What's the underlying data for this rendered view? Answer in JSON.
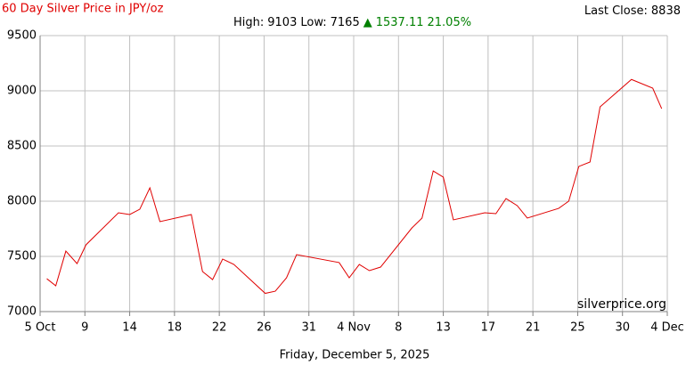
{
  "chart_data": {
    "type": "line",
    "title": "60 Day Silver Price in JPY/oz",
    "last_close_label": "Last Close:",
    "last_close": 8838,
    "high_label": "High:",
    "high": 9103,
    "low_label": "Low:",
    "low": 7165,
    "change_arrow": "▲",
    "change": 1537.11,
    "change_percent": "21.05%",
    "watermark": "silverprice.org",
    "date_caption": "Friday, December 5, 2025",
    "color": "#e00000",
    "grid": true,
    "x": [
      0.6,
      1.4,
      2.3,
      3.3,
      4.1,
      7.0,
      8.0,
      8.9,
      9.8,
      10.7,
      13.5,
      14.5,
      15.4,
      16.3,
      17.3,
      20.1,
      21.0,
      22.0,
      22.9,
      26.7,
      27.6,
      28.5,
      29.4,
      30.4,
      33.2,
      34.1,
      35.1,
      36.0,
      36.9,
      39.7,
      40.7,
      41.6,
      42.6,
      43.5,
      46.3,
      47.2,
      48.1,
      49.1,
      50.0,
      52.8,
      54.7,
      55.5
    ],
    "values": [
      7298,
      7234,
      7548,
      7435,
      7605,
      7895,
      7879,
      7927,
      8121,
      7815,
      7879,
      7363,
      7290,
      7476,
      7427,
      7165,
      7185,
      7306,
      7516,
      7444,
      7306,
      7427,
      7371,
      7403,
      7758,
      7847,
      8274,
      8218,
      7831,
      7895,
      7887,
      8024,
      7960,
      7847,
      7935,
      8000,
      8315,
      8355,
      8855,
      9103,
      9024,
      8838
    ],
    "xlim": [
      0,
      56
    ],
    "xticks": [
      {
        "value": 0,
        "label": "5 Oct"
      },
      {
        "value": 4,
        "label": "9"
      },
      {
        "value": 8,
        "label": "14"
      },
      {
        "value": 12,
        "label": "18"
      },
      {
        "value": 16,
        "label": "22"
      },
      {
        "value": 20,
        "label": "26"
      },
      {
        "value": 24,
        "label": "31"
      },
      {
        "value": 28,
        "label": "4 Nov"
      },
      {
        "value": 32,
        "label": "8"
      },
      {
        "value": 36,
        "label": "13"
      },
      {
        "value": 40,
        "label": "17"
      },
      {
        "value": 44,
        "label": "21"
      },
      {
        "value": 48,
        "label": "25"
      },
      {
        "value": 52,
        "label": "30"
      },
      {
        "value": 56,
        "label": "4 Dec"
      }
    ],
    "ylim": [
      7000,
      9500
    ],
    "yticks": [
      7000,
      7500,
      8000,
      8500,
      9000,
      9500
    ]
  }
}
